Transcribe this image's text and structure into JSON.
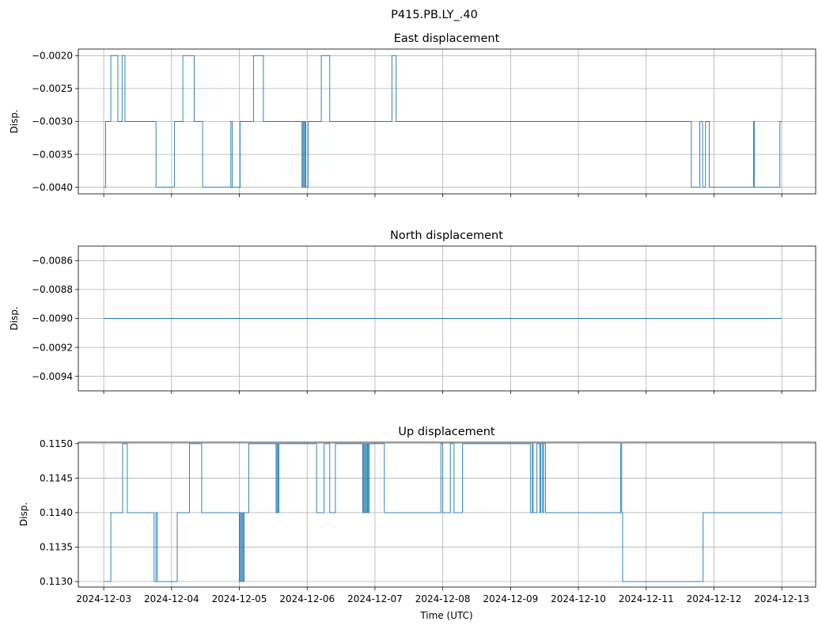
{
  "figure": {
    "title": "P415.PB.LY_.40",
    "xlabel": "Time (UTC)"
  },
  "colors": {
    "line": "#1f77b4",
    "grid": "#b0b0b0",
    "axes": "#000000"
  },
  "chart_data": [
    {
      "type": "line",
      "title": "East displacement",
      "ylabel": "Disp.",
      "grid": true,
      "xlim": [
        "2024-12-02T15:00",
        "2024-12-13T12:00"
      ],
      "ylim": [
        -0.0041,
        -0.0019
      ],
      "yticks": [
        -0.004,
        -0.0035,
        -0.003,
        -0.0025,
        -0.002
      ],
      "ytick_labels": [
        "−0.0040",
        "−0.0035",
        "−0.0030",
        "−0.0025",
        "−0.0020"
      ],
      "x_tick_labels_visible": false,
      "series": [
        {
          "x": [
            "2024-12-03T00:00",
            "2024-12-03T00:40",
            "2024-12-03T00:40",
            "2024-12-03T02:30",
            "2024-12-03T02:30",
            "2024-12-03T05:00",
            "2024-12-03T05:00",
            "2024-12-03T06:30",
            "2024-12-03T06:30",
            "2024-12-03T07:30",
            "2024-12-03T07:30",
            "2024-12-03T18:30",
            "2024-12-03T18:30",
            "2024-12-04T01:00",
            "2024-12-04T01:00",
            "2024-12-04T04:00",
            "2024-12-04T04:00",
            "2024-12-04T08:00",
            "2024-12-04T08:00",
            "2024-12-04T11:00",
            "2024-12-04T11:00",
            "2024-12-04T21:00",
            "2024-12-04T21:00",
            "2024-12-04T21:30",
            "2024-12-04T21:30",
            "2024-12-05T00:20",
            "2024-12-05T00:20",
            "2024-12-05T05:00",
            "2024-12-05T05:00",
            "2024-12-05T08:30",
            "2024-12-05T08:30",
            "2024-12-05T22:10",
            "2024-12-05T22:10",
            "2024-12-05T22:30",
            "2024-12-05T22:30",
            "2024-12-05T22:50",
            "2024-12-05T22:50",
            "2024-12-05T23:10",
            "2024-12-05T23:10",
            "2024-12-05T23:30",
            "2024-12-05T23:30",
            "2024-12-06T00:20",
            "2024-12-06T00:20",
            "2024-12-06T05:00",
            "2024-12-06T05:00",
            "2024-12-06T08:00",
            "2024-12-06T08:00",
            "2024-12-07T06:00",
            "2024-12-07T06:00",
            "2024-12-07T07:30",
            "2024-12-07T07:30",
            "2024-12-11T16:00",
            "2024-12-11T16:00",
            "2024-12-11T19:00",
            "2024-12-11T19:00",
            "2024-12-11T20:00",
            "2024-12-11T20:00",
            "2024-12-11T21:00",
            "2024-12-11T21:00",
            "2024-12-11T22:20",
            "2024-12-11T22:20",
            "2024-12-12T14:00",
            "2024-12-12T14:00",
            "2024-12-12T14:20",
            "2024-12-12T14:20",
            "2024-12-12T14:40",
            "2024-12-12T14:40",
            "2024-12-12T23:20",
            "2024-12-12T23:20",
            "2024-12-13T00:00"
          ],
          "y": [
            -0.004,
            -0.004,
            -0.003,
            -0.003,
            -0.002,
            -0.002,
            -0.003,
            -0.003,
            -0.002,
            -0.002,
            -0.003,
            -0.003,
            -0.004,
            -0.004,
            -0.003,
            -0.003,
            -0.002,
            -0.002,
            -0.003,
            -0.003,
            -0.004,
            -0.004,
            -0.003,
            -0.003,
            -0.004,
            -0.004,
            -0.003,
            -0.003,
            -0.002,
            -0.002,
            -0.003,
            -0.003,
            -0.004,
            -0.004,
            -0.003,
            -0.003,
            -0.004,
            -0.004,
            -0.003,
            -0.003,
            -0.004,
            -0.004,
            -0.003,
            -0.003,
            -0.002,
            -0.002,
            -0.003,
            -0.003,
            -0.002,
            -0.002,
            -0.003,
            -0.003,
            -0.004,
            -0.004,
            -0.003,
            -0.003,
            -0.004,
            -0.004,
            -0.003,
            -0.003,
            -0.004,
            -0.004,
            -0.003,
            -0.003,
            -0.004,
            -0.004,
            -0.004,
            -0.004,
            -0.003,
            -0.003
          ]
        }
      ]
    },
    {
      "type": "line",
      "title": "North displacement",
      "ylabel": "Disp.",
      "grid": true,
      "xlim": [
        "2024-12-02T15:00",
        "2024-12-13T12:00"
      ],
      "ylim": [
        -0.0095,
        -0.0085
      ],
      "yticks": [
        -0.0094,
        -0.0092,
        -0.009,
        -0.0088,
        -0.0086
      ],
      "ytick_labels": [
        "−0.0094",
        "−0.0092",
        "−0.0090",
        "−0.0088",
        "−0.0086"
      ],
      "x_tick_labels_visible": false,
      "series": [
        {
          "x": [
            "2024-12-03T00:00",
            "2024-12-13T00:00"
          ],
          "y": [
            -0.009,
            -0.009
          ]
        }
      ]
    },
    {
      "type": "line",
      "title": "Up displacement",
      "ylabel": "Disp.",
      "grid": true,
      "xlim": [
        "2024-12-02T15:00",
        "2024-12-13T12:00"
      ],
      "ylim": [
        0.11292,
        0.11502
      ],
      "yticks": [
        0.113,
        0.1135,
        0.114,
        0.1145,
        0.115
      ],
      "ytick_labels": [
        "0.1130",
        "0.1135",
        "0.1140",
        "0.1145",
        "0.1150"
      ],
      "xticks": [
        "2024-12-03",
        "2024-12-04",
        "2024-12-05",
        "2024-12-06",
        "2024-12-07",
        "2024-12-08",
        "2024-12-09",
        "2024-12-10",
        "2024-12-11",
        "2024-12-12",
        "2024-12-13"
      ],
      "xtick_labels": [
        "2024-12-03",
        "2024-12-04",
        "2024-12-05",
        "2024-12-06",
        "2024-12-07",
        "2024-12-08",
        "2024-12-09",
        "2024-12-10",
        "2024-12-11",
        "2024-12-12",
        "2024-12-13"
      ],
      "x_tick_labels_visible": true,
      "series": [
        {
          "x": [
            "2024-12-03T00:00",
            "2024-12-03T02:30",
            "2024-12-03T02:30",
            "2024-12-03T06:40",
            "2024-12-03T06:40",
            "2024-12-03T08:20",
            "2024-12-03T08:20",
            "2024-12-03T17:50",
            "2024-12-03T17:50",
            "2024-12-03T18:30",
            "2024-12-03T18:30",
            "2024-12-03T19:00",
            "2024-12-03T19:00",
            "2024-12-04T02:00",
            "2024-12-04T02:00",
            "2024-12-04T06:20",
            "2024-12-04T06:20",
            "2024-12-04T10:40",
            "2024-12-04T10:40",
            "2024-12-05T00:00",
            "2024-12-05T00:00",
            "2024-12-05T00:20",
            "2024-12-05T00:20",
            "2024-12-05T00:40",
            "2024-12-05T00:40",
            "2024-12-05T01:00",
            "2024-12-05T01:00",
            "2024-12-05T01:20",
            "2024-12-05T01:20",
            "2024-12-05T01:40",
            "2024-12-05T01:40",
            "2024-12-05T03:20",
            "2024-12-05T03:20",
            "2024-12-05T13:00",
            "2024-12-05T13:00",
            "2024-12-05T13:20",
            "2024-12-05T13:20",
            "2024-12-05T13:40",
            "2024-12-05T13:40",
            "2024-12-05T14:00",
            "2024-12-05T14:00",
            "2024-12-06T03:20",
            "2024-12-06T03:20",
            "2024-12-06T06:00",
            "2024-12-06T06:00",
            "2024-12-06T08:00",
            "2024-12-06T08:00",
            "2024-12-06T10:00",
            "2024-12-06T10:00",
            "2024-12-06T19:40",
            "2024-12-06T19:40",
            "2024-12-06T20:00",
            "2024-12-06T20:00",
            "2024-12-06T20:20",
            "2024-12-06T20:20",
            "2024-12-06T20:40",
            "2024-12-06T20:40",
            "2024-12-06T21:00",
            "2024-12-06T21:00",
            "2024-12-06T21:20",
            "2024-12-06T21:20",
            "2024-12-06T21:40",
            "2024-12-06T21:40",
            "2024-12-06T22:00",
            "2024-12-06T22:00",
            "2024-12-07T03:20",
            "2024-12-07T03:20",
            "2024-12-07T23:20",
            "2024-12-07T23:20",
            "2024-12-08T00:00",
            "2024-12-08T00:00",
            "2024-12-08T02:40",
            "2024-12-08T02:40",
            "2024-12-08T04:00",
            "2024-12-08T04:00",
            "2024-12-08T07:00",
            "2024-12-08T07:00",
            "2024-12-09T07:00",
            "2024-12-09T07:00",
            "2024-12-09T07:40",
            "2024-12-09T07:40",
            "2024-12-09T08:00",
            "2024-12-09T08:00",
            "2024-12-09T09:20",
            "2024-12-09T09:20",
            "2024-12-09T10:20",
            "2024-12-09T10:20",
            "2024-12-09T10:40",
            "2024-12-09T10:40",
            "2024-12-09T11:20",
            "2024-12-09T11:20",
            "2024-12-09T11:40",
            "2024-12-09T11:40",
            "2024-12-09T12:20",
            "2024-12-09T12:20",
            "2024-12-10T15:00",
            "2024-12-10T15:00",
            "2024-12-10T15:20",
            "2024-12-10T15:20",
            "2024-12-10T15:40",
            "2024-12-10T15:40",
            "2024-12-11T20:10",
            "2024-12-11T20:10",
            "2024-12-11T20:40",
            "2024-12-11T20:40",
            "2024-12-13T00:00"
          ],
          "y": [
            0.113,
            0.113,
            0.114,
            0.114,
            0.115,
            0.115,
            0.114,
            0.114,
            0.113,
            0.113,
            0.114,
            0.114,
            0.113,
            0.113,
            0.114,
            0.114,
            0.115,
            0.115,
            0.114,
            0.114,
            0.113,
            0.113,
            0.114,
            0.114,
            0.113,
            0.113,
            0.114,
            0.114,
            0.113,
            0.113,
            0.114,
            0.114,
            0.115,
            0.115,
            0.114,
            0.114,
            0.115,
            0.115,
            0.114,
            0.114,
            0.115,
            0.115,
            0.114,
            0.114,
            0.115,
            0.115,
            0.114,
            0.114,
            0.115,
            0.115,
            0.114,
            0.114,
            0.115,
            0.115,
            0.114,
            0.114,
            0.115,
            0.115,
            0.114,
            0.114,
            0.115,
            0.115,
            0.114,
            0.114,
            0.115,
            0.115,
            0.114,
            0.114,
            0.115,
            0.115,
            0.114,
            0.114,
            0.115,
            0.115,
            0.114,
            0.114,
            0.115,
            0.115,
            0.114,
            0.114,
            0.115,
            0.115,
            0.114,
            0.114,
            0.115,
            0.115,
            0.114,
            0.114,
            0.115,
            0.115,
            0.114,
            0.114,
            0.115,
            0.115,
            0.114,
            0.114,
            0.115,
            0.115,
            0.114,
            0.114,
            0.113,
            0.113,
            0.114,
            0.114,
            0.114,
            0.114
          ]
        }
      ]
    }
  ]
}
